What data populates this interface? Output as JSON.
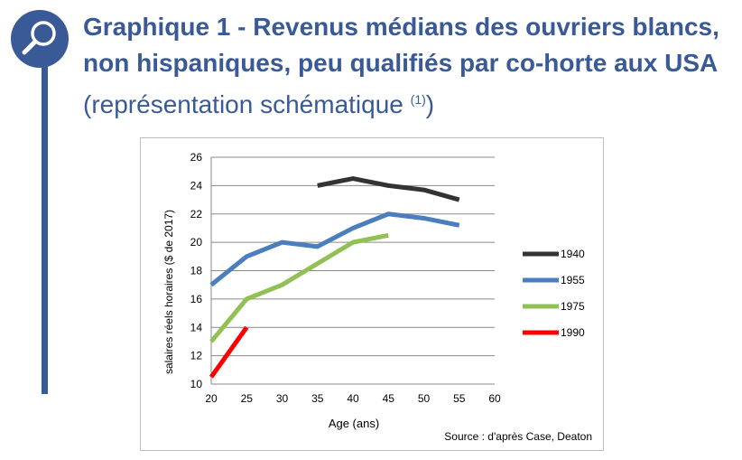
{
  "title": {
    "bold": "Graphique 1 - Revenus médians des ouvriers blancs, non hispaniques, peu qualifiés par co-horte aux USA",
    "light": " (représentation schématique ",
    "note_ref": "(1)",
    "close": ")"
  },
  "colors": {
    "accent": "#3a5a97"
  },
  "icons": {
    "header": "magnifier-icon"
  },
  "chart_data": {
    "type": "line",
    "xlabel": "Age (ans)",
    "ylabel": "salaires réels horaires  ($ de 2017)",
    "xlim": [
      20,
      60
    ],
    "ylim": [
      10,
      26
    ],
    "x_ticks": [
      20,
      25,
      30,
      35,
      40,
      45,
      50,
      55,
      60
    ],
    "y_ticks": [
      10,
      12,
      14,
      16,
      18,
      20,
      22,
      24,
      26
    ],
    "grid": "horizontal",
    "legend_position": "right",
    "source": "Source : d'après Case, Deaton",
    "series": [
      {
        "name": "1940",
        "color": "#333333",
        "x": [
          35,
          40,
          45,
          50,
          55
        ],
        "y": [
          24.0,
          24.5,
          24.0,
          23.7,
          23.0
        ]
      },
      {
        "name": "1955",
        "color": "#4a7ebf",
        "x": [
          20,
          25,
          30,
          35,
          40,
          45,
          50,
          55
        ],
        "y": [
          17.0,
          19.0,
          20.0,
          19.7,
          21.0,
          22.0,
          21.7,
          21.2
        ]
      },
      {
        "name": "1975",
        "color": "#92c054",
        "x": [
          20,
          25,
          30,
          35,
          40,
          45
        ],
        "y": [
          13.0,
          16.0,
          17.0,
          18.5,
          20.0,
          20.5
        ]
      },
      {
        "name": "1990",
        "color": "#ff0000",
        "x": [
          20,
          25
        ],
        "y": [
          10.5,
          14.0
        ]
      }
    ]
  }
}
